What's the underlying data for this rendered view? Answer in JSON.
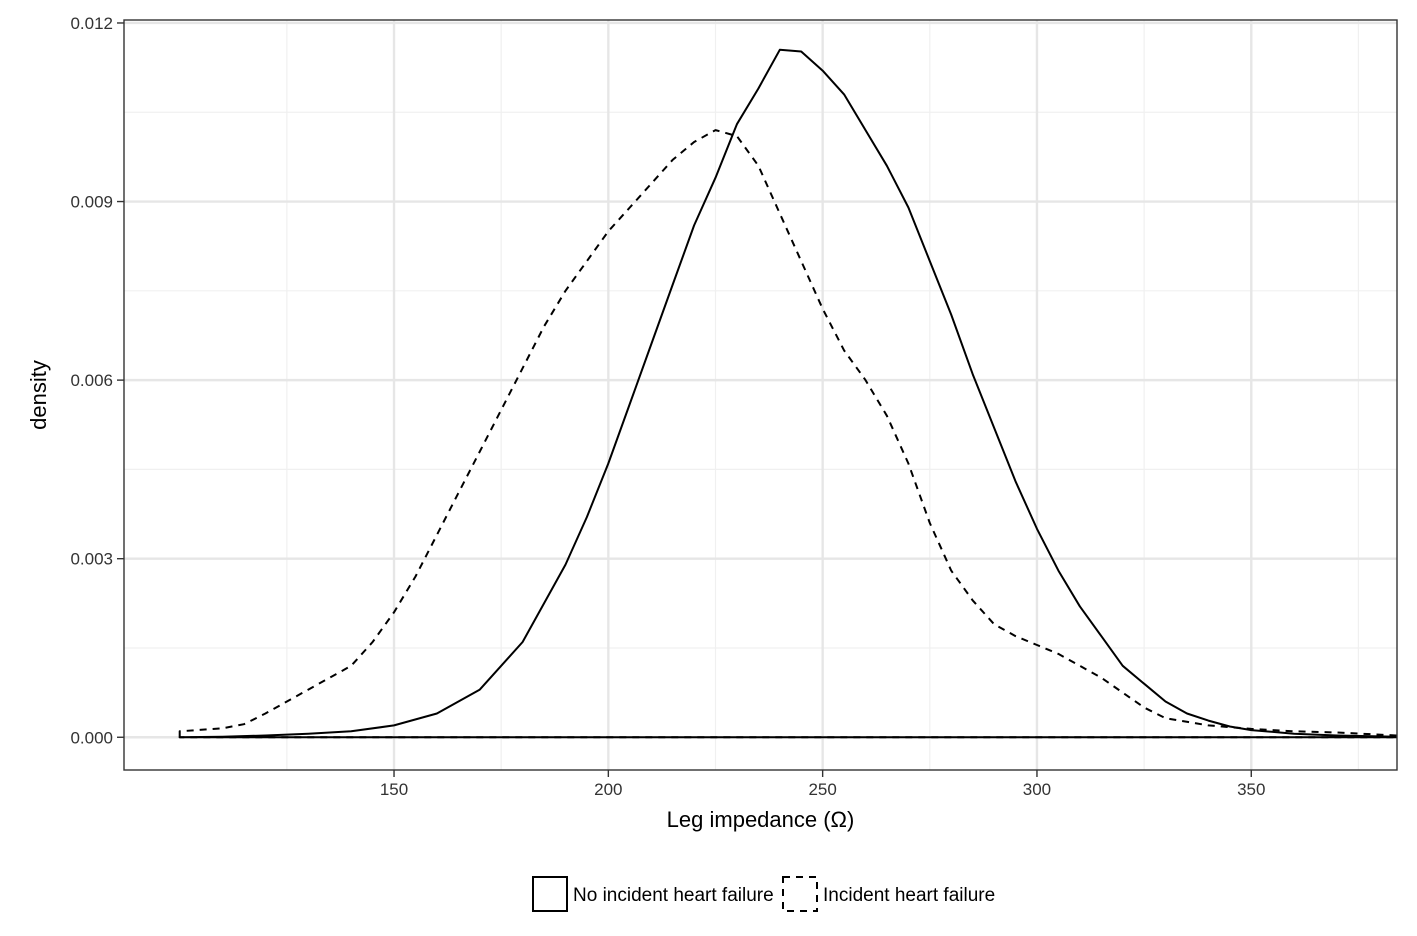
{
  "chart_data": {
    "type": "line",
    "title": "",
    "xlabel": "Leg impedance (Ω)",
    "ylabel": "density",
    "xlim": [
      87,
      384
    ],
    "ylim": [
      -0.00055,
      0.01205
    ],
    "x_ticks": [
      150,
      200,
      250,
      300,
      350
    ],
    "x_tick_labels": [
      "150",
      "200",
      "250",
      "300",
      "350"
    ],
    "x_minor_ticks": [
      125,
      175,
      225,
      275,
      325,
      375
    ],
    "y_ticks": [
      0,
      0.003,
      0.006,
      0.009,
      0.012
    ],
    "y_tick_labels": [
      "0.000",
      "0.003",
      "0.006",
      "0.009",
      "0.012"
    ],
    "y_minor_ticks": [
      0.0015,
      0.0045,
      0.0075,
      0.0105
    ],
    "grid": true,
    "legend_position": "bottom",
    "series": [
      {
        "name": "No incident heart failure",
        "linetype": "solid",
        "points": [
          [
            100,
            0.0
          ],
          [
            110,
            1e-05
          ],
          [
            120,
            3e-05
          ],
          [
            130,
            6e-05
          ],
          [
            140,
            0.0001
          ],
          [
            150,
            0.0002
          ],
          [
            160,
            0.0004
          ],
          [
            170,
            0.0008
          ],
          [
            180,
            0.0016
          ],
          [
            190,
            0.0029
          ],
          [
            195,
            0.0037
          ],
          [
            200,
            0.0046
          ],
          [
            205,
            0.0056
          ],
          [
            210,
            0.0066
          ],
          [
            215,
            0.0076
          ],
          [
            220,
            0.0086
          ],
          [
            225,
            0.0094
          ],
          [
            230,
            0.0103
          ],
          [
            235,
            0.0109
          ],
          [
            240,
            0.01155
          ],
          [
            245,
            0.01152
          ],
          [
            250,
            0.0112
          ],
          [
            255,
            0.0108
          ],
          [
            260,
            0.0102
          ],
          [
            265,
            0.0096
          ],
          [
            270,
            0.0089
          ],
          [
            275,
            0.008
          ],
          [
            280,
            0.0071
          ],
          [
            285,
            0.0061
          ],
          [
            290,
            0.0052
          ],
          [
            295,
            0.0043
          ],
          [
            300,
            0.0035
          ],
          [
            305,
            0.0028
          ],
          [
            310,
            0.0022
          ],
          [
            315,
            0.0017
          ],
          [
            320,
            0.0012
          ],
          [
            325,
            0.0009
          ],
          [
            330,
            0.0006
          ],
          [
            335,
            0.0004
          ],
          [
            340,
            0.00028
          ],
          [
            345,
            0.00018
          ],
          [
            350,
            0.00012
          ],
          [
            360,
            6e-05
          ],
          [
            370,
            3e-05
          ],
          [
            384,
            1e-05
          ]
        ]
      },
      {
        "name": "Incident heart failure",
        "linetype": "dashed",
        "points": [
          [
            100,
            0.0001
          ],
          [
            110,
            0.00015
          ],
          [
            115,
            0.00022
          ],
          [
            120,
            0.0004
          ],
          [
            125,
            0.0006
          ],
          [
            130,
            0.0008
          ],
          [
            135,
            0.001
          ],
          [
            140,
            0.0012
          ],
          [
            145,
            0.0016
          ],
          [
            150,
            0.0021
          ],
          [
            155,
            0.0027
          ],
          [
            160,
            0.0034
          ],
          [
            165,
            0.0041
          ],
          [
            170,
            0.0048
          ],
          [
            175,
            0.0055
          ],
          [
            180,
            0.0062
          ],
          [
            185,
            0.0069
          ],
          [
            190,
            0.0075
          ],
          [
            195,
            0.008
          ],
          [
            200,
            0.0085
          ],
          [
            205,
            0.0089
          ],
          [
            210,
            0.0093
          ],
          [
            215,
            0.0097
          ],
          [
            220,
            0.01
          ],
          [
            225,
            0.0102
          ],
          [
            230,
            0.0101
          ],
          [
            235,
            0.0096
          ],
          [
            240,
            0.0088
          ],
          [
            245,
            0.008
          ],
          [
            250,
            0.0072
          ],
          [
            255,
            0.0065
          ],
          [
            260,
            0.006
          ],
          [
            265,
            0.0054
          ],
          [
            270,
            0.0046
          ],
          [
            275,
            0.0036
          ],
          [
            280,
            0.0028
          ],
          [
            285,
            0.0023
          ],
          [
            290,
            0.0019
          ],
          [
            295,
            0.0017
          ],
          [
            300,
            0.00155
          ],
          [
            305,
            0.0014
          ],
          [
            310,
            0.0012
          ],
          [
            315,
            0.001
          ],
          [
            320,
            0.00075
          ],
          [
            325,
            0.0005
          ],
          [
            330,
            0.00032
          ],
          [
            340,
            0.0002
          ],
          [
            350,
            0.00014
          ],
          [
            360,
            0.0001
          ],
          [
            370,
            8e-05
          ],
          [
            384,
            3e-05
          ]
        ]
      }
    ]
  }
}
